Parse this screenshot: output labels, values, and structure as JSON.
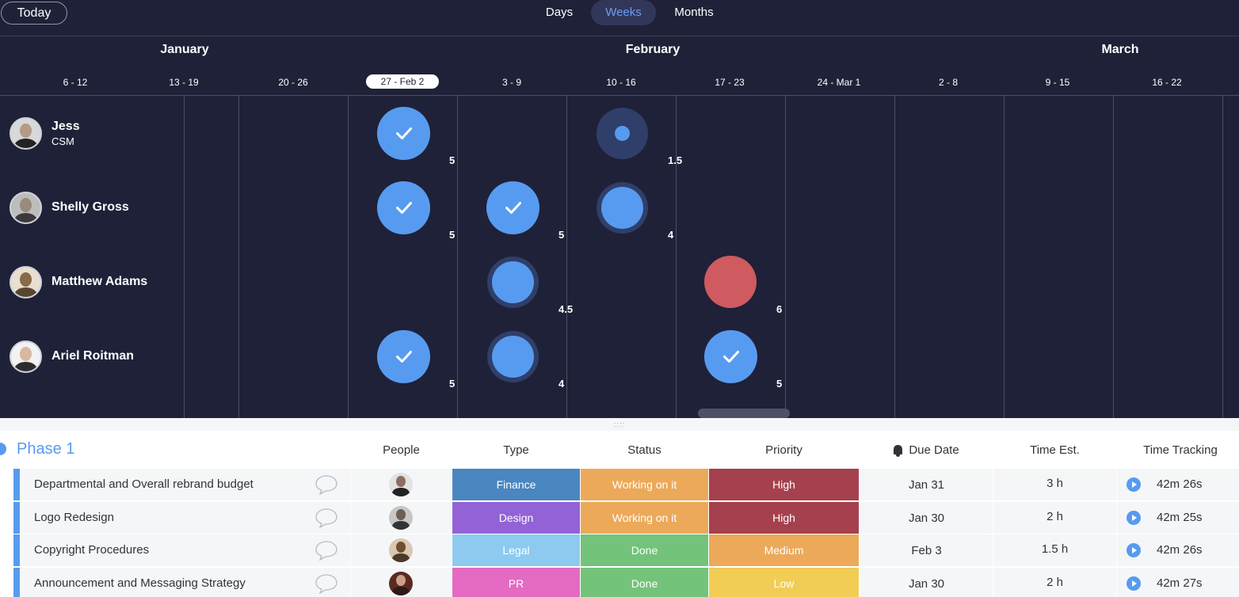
{
  "toolbar": {
    "today_label": "Today",
    "views": [
      "Days",
      "Weeks",
      "Months"
    ],
    "active_view": "Weeks"
  },
  "timeline": {
    "months": [
      "January",
      "February",
      "March"
    ],
    "weeks": [
      "6 - 12",
      "13 - 19",
      "20 - 26",
      "27 - Feb 2",
      "3 - 9",
      "10 - 16",
      "17 - 23",
      "24 - Mar 1",
      "2 - 8",
      "9 - 15",
      "16 - 22"
    ],
    "current_week": "27 - Feb 2"
  },
  "people": [
    {
      "name": "Jess",
      "role": "CSM",
      "bookings": [
        {
          "week": "27 - Feb 2",
          "hours": "5",
          "state": "done"
        },
        {
          "week": "10 - 16",
          "hours": "1.5",
          "state": "light"
        }
      ]
    },
    {
      "name": "Shelly Gross",
      "role": "",
      "bookings": [
        {
          "week": "27 - Feb 2",
          "hours": "5",
          "state": "done"
        },
        {
          "week": "3 - 9",
          "hours": "5",
          "state": "done"
        },
        {
          "week": "10 - 16",
          "hours": "4",
          "state": "partial"
        }
      ]
    },
    {
      "name": "Matthew Adams",
      "role": "",
      "bookings": [
        {
          "week": "3 - 9",
          "hours": "4.5",
          "state": "partial"
        },
        {
          "week": "17 - 23",
          "hours": "6",
          "state": "overload"
        }
      ]
    },
    {
      "name": "Ariel Roitman",
      "role": "",
      "bookings": [
        {
          "week": "27 - Feb 2",
          "hours": "5",
          "state": "done"
        },
        {
          "week": "3 - 9",
          "hours": "4",
          "state": "partial"
        },
        {
          "week": "17 - 23",
          "hours": "5",
          "state": "done"
        }
      ]
    }
  ],
  "board": {
    "group_title": "Phase 1",
    "columns": {
      "people": "People",
      "type": "Type",
      "status": "Status",
      "priority": "Priority",
      "due_date": "Due Date",
      "time_est": "Time Est.",
      "time_tracking": "Time Tracking"
    },
    "rows": [
      {
        "name": "Departmental and Overall rebrand budget",
        "type": "Finance",
        "status": "Working on it",
        "priority": "High",
        "due_date": "Jan 31",
        "time_est": "3 h",
        "time_tracking": "42m 26s"
      },
      {
        "name": "Logo Redesign",
        "type": "Design",
        "status": "Working on it",
        "priority": "High",
        "due_date": "Jan 30",
        "time_est": "2 h",
        "time_tracking": "42m 25s"
      },
      {
        "name": "Copyright Procedures",
        "type": "Legal",
        "status": "Done",
        "priority": "Medium",
        "due_date": "Feb 3",
        "time_est": "1.5 h",
        "time_tracking": "42m 26s"
      },
      {
        "name": "Announcement and Messaging Strategy",
        "type": "PR",
        "status": "Done",
        "priority": "Low",
        "due_date": "Jan 30",
        "time_est": "2 h",
        "time_tracking": "42m 27s"
      }
    ]
  },
  "colors": {
    "accent": "#579bf0",
    "type": {
      "Finance": "#4a86c0",
      "Design": "#9362d6",
      "Legal": "#8ecaf0",
      "PR": "#e46ac4"
    },
    "status": {
      "Working on it": "#eca95a",
      "Done": "#73c37a"
    },
    "priority": {
      "High": "#a5404e",
      "Medium": "#eca95a",
      "Low": "#f2cd55"
    }
  }
}
